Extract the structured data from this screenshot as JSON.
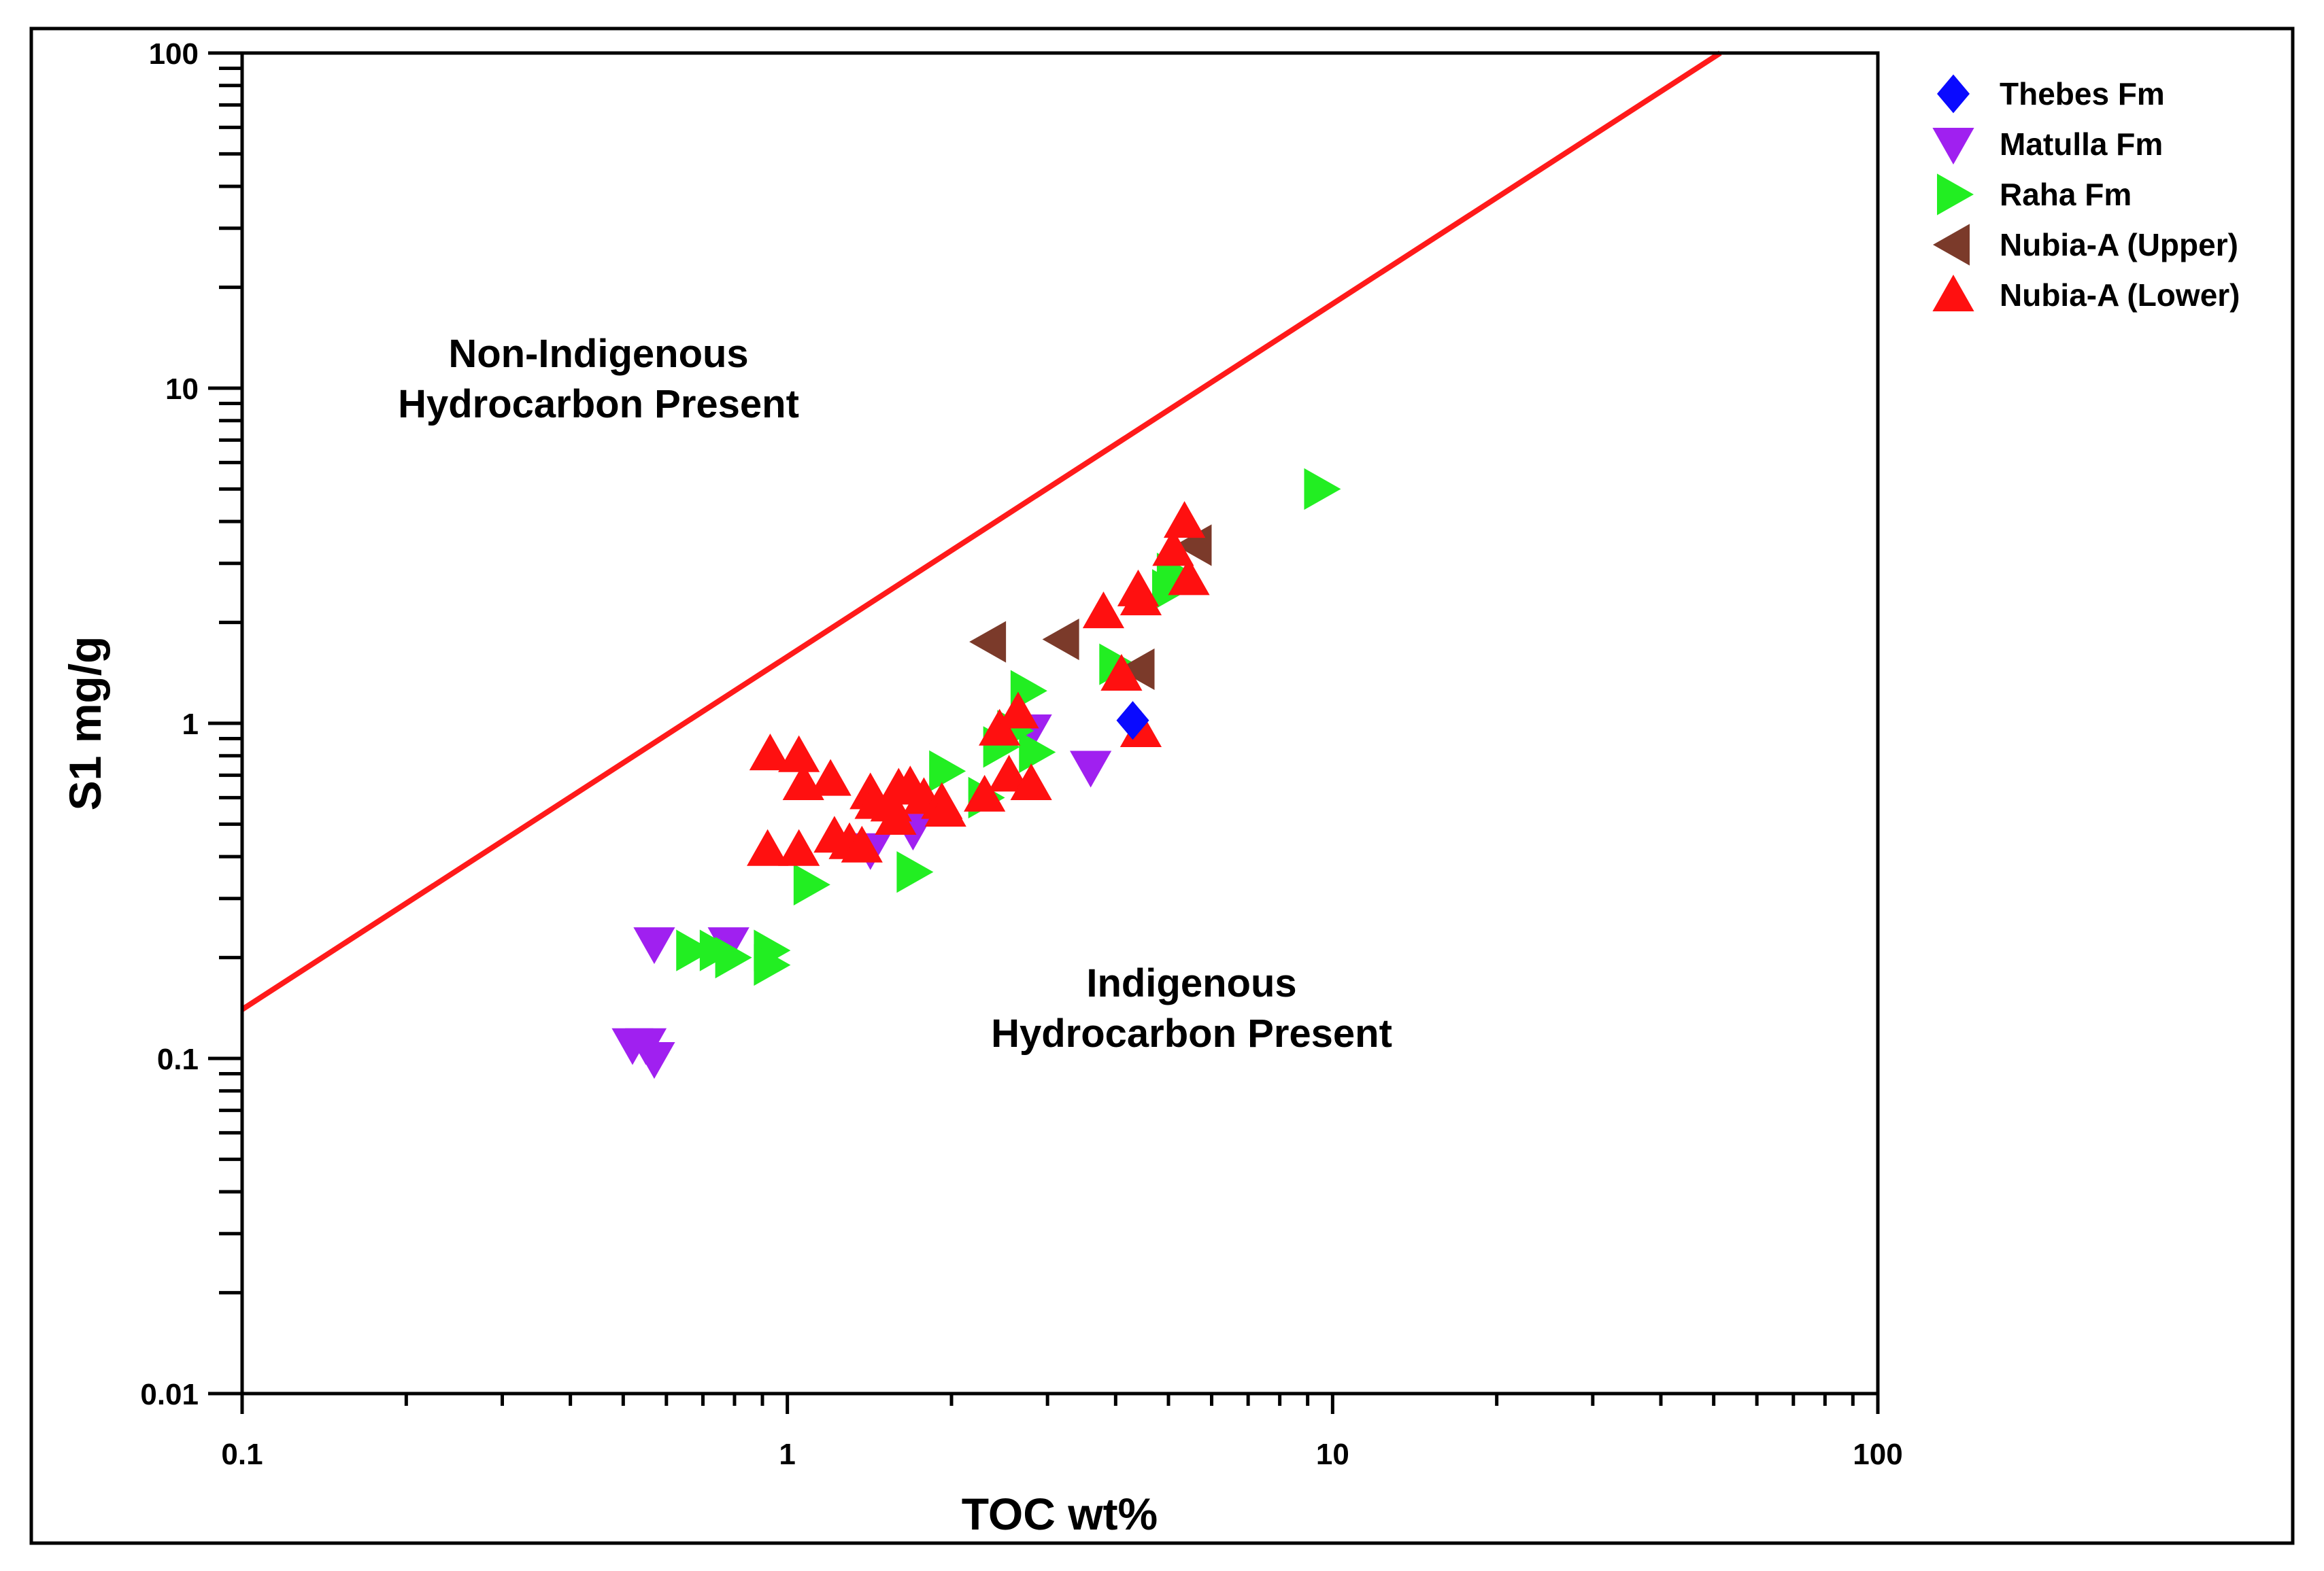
{
  "chart_data": {
    "type": "scatter",
    "x_scale": "log",
    "y_scale": "log",
    "xlabel": "TOC wt%",
    "ylabel": "S1 mg/g",
    "xlim": [
      0.1,
      100
    ],
    "ylim": [
      0.01,
      100
    ],
    "x_tick_labels": [
      {
        "value": 0.1,
        "label": "0.1"
      },
      {
        "value": 1,
        "label": "1"
      },
      {
        "value": 10,
        "label": "10"
      },
      {
        "value": 100,
        "label": "100"
      }
    ],
    "y_tick_labels": [
      {
        "value": 0.01,
        "label": "0.01"
      },
      {
        "value": 0.1,
        "label": "0.1"
      },
      {
        "value": 1,
        "label": "1"
      },
      {
        "value": 10,
        "label": "10"
      },
      {
        "value": 100,
        "label": "100"
      }
    ],
    "boundary_line": {
      "color": "#ff1a1a",
      "points": [
        [
          0.1,
          0.14
        ],
        [
          51.4,
          100
        ]
      ]
    },
    "annotations": [
      {
        "id": "non-indigenous",
        "lines": [
          "Non-Indigenous",
          "Hydrocarbon Present"
        ],
        "x": 0.35,
        "y": 12
      },
      {
        "id": "indigenous",
        "lines": [
          "Indigenous",
          "Hydrocarbon Present"
        ],
        "x": 5.5,
        "y": 0.13
      }
    ],
    "legend_position": "top-right",
    "series": [
      {
        "name": "Thebes Fm",
        "marker": "diamond",
        "color": "#0a0aff",
        "points": [
          [
            4.3,
            1.02
          ]
        ]
      },
      {
        "name": "Matulla Fm",
        "marker": "triangle-down",
        "color": "#a020f0",
        "points": [
          [
            0.52,
            0.11
          ],
          [
            0.55,
            0.11
          ],
          [
            0.57,
            0.1
          ],
          [
            0.57,
            0.22
          ],
          [
            0.78,
            0.22
          ],
          [
            1.42,
            0.42
          ],
          [
            1.7,
            0.48
          ],
          [
            2.8,
            0.95
          ],
          [
            3.6,
            0.74
          ]
        ]
      },
      {
        "name": "Raha Fm",
        "marker": "triangle-right",
        "color": "#22ee22",
        "points": [
          [
            0.67,
            0.21
          ],
          [
            0.74,
            0.21
          ],
          [
            0.79,
            0.2
          ],
          [
            0.93,
            0.21
          ],
          [
            0.93,
            0.19
          ],
          [
            1.1,
            0.33
          ],
          [
            1.7,
            0.36
          ],
          [
            1.95,
            0.72
          ],
          [
            2.3,
            0.6
          ],
          [
            2.45,
            0.85
          ],
          [
            2.6,
            0.95
          ],
          [
            2.75,
            1.25
          ],
          [
            2.85,
            0.82
          ],
          [
            4.0,
            1.5
          ],
          [
            5.0,
            2.5
          ],
          [
            5.1,
            2.8
          ],
          [
            9.5,
            5.0
          ]
        ]
      },
      {
        "name": "Nubia-A (Upper)",
        "marker": "triangle-left",
        "color": "#7b3a2a",
        "points": [
          [
            2.35,
            1.75
          ],
          [
            3.2,
            1.78
          ],
          [
            4.4,
            1.45
          ],
          [
            5.6,
            3.4
          ]
        ]
      },
      {
        "name": "Nubia-A (Lower)",
        "marker": "triangle-up",
        "color": "#ff1010",
        "points": [
          [
            0.93,
            0.81
          ],
          [
            1.05,
            0.8
          ],
          [
            1.07,
            0.66
          ],
          [
            1.2,
            0.68
          ],
          [
            0.92,
            0.42
          ],
          [
            1.05,
            0.42
          ],
          [
            1.22,
            0.46
          ],
          [
            1.3,
            0.44
          ],
          [
            1.37,
            0.43
          ],
          [
            1.42,
            0.62
          ],
          [
            1.45,
            0.58
          ],
          [
            1.55,
            0.57
          ],
          [
            1.6,
            0.64
          ],
          [
            1.68,
            0.65
          ],
          [
            1.58,
            0.52
          ],
          [
            1.78,
            0.6
          ],
          [
            1.92,
            0.58
          ],
          [
            1.95,
            0.55
          ],
          [
            2.3,
            0.61
          ],
          [
            2.45,
            0.96
          ],
          [
            2.55,
            0.7
          ],
          [
            2.65,
            1.08
          ],
          [
            2.8,
            0.66
          ],
          [
            3.8,
            2.15
          ],
          [
            4.1,
            1.4
          ],
          [
            4.4,
            2.5
          ],
          [
            4.45,
            2.35
          ],
          [
            4.45,
            0.95
          ],
          [
            5.1,
            3.3
          ],
          [
            5.35,
            4.0
          ],
          [
            5.45,
            2.7
          ]
        ]
      }
    ]
  }
}
